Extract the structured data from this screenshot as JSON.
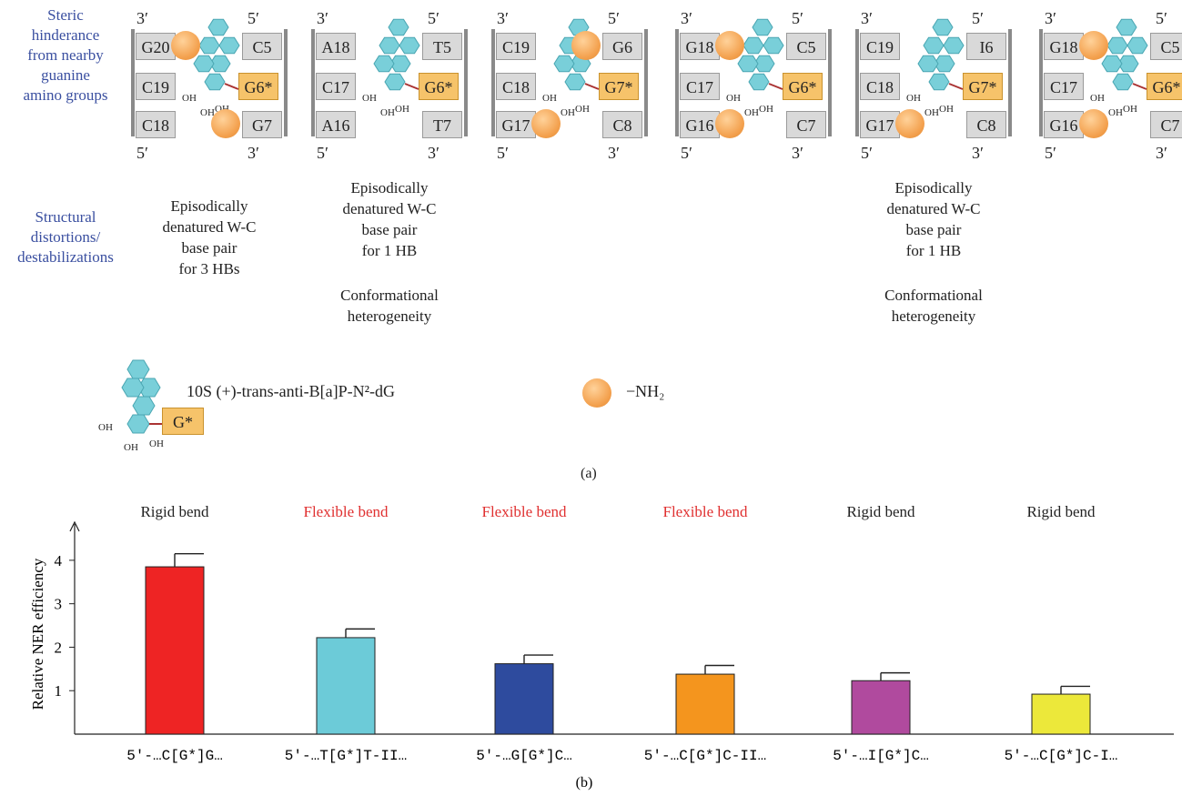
{
  "row_labels": {
    "steric": [
      "Steric",
      "hinderance",
      "from nearby",
      "guanine",
      "amino groups"
    ],
    "structural": [
      "Structural",
      "distortions/",
      "destabilizations"
    ]
  },
  "panels": [
    {
      "top_left": "3′",
      "top_right": "5′",
      "bottom_left": "5′",
      "bottom_right": "3′",
      "left": [
        "G20",
        "C19",
        "C18"
      ],
      "right": [
        "C5",
        "G6*",
        "G7"
      ],
      "notes": [
        "Episodically",
        "denatured W-C",
        "base pair",
        "for 3 HBs"
      ],
      "notes2": []
    },
    {
      "top_left": "3′",
      "top_right": "5′",
      "bottom_left": "5′",
      "bottom_right": "3′",
      "left": [
        "A18",
        "C17",
        "A16"
      ],
      "right": [
        "T5",
        "G6*",
        "T7"
      ],
      "notes": [
        "Episodically",
        "denatured W-C",
        "base pair",
        "for 1 HB"
      ],
      "notes2": [
        "Conformational",
        "heterogeneity"
      ]
    },
    {
      "top_left": "3′",
      "top_right": "5′",
      "bottom_left": "5′",
      "bottom_right": "3′",
      "left": [
        "C19",
        "C18",
        "G17"
      ],
      "right": [
        "G6",
        "G7*",
        "C8"
      ],
      "notes": [],
      "notes2": []
    },
    {
      "top_left": "3′",
      "top_right": "5′",
      "bottom_left": "5′",
      "bottom_right": "3′",
      "left": [
        "G18",
        "C17",
        "G16"
      ],
      "right": [
        "C5",
        "G6*",
        "C7"
      ],
      "notes": [],
      "notes2": []
    },
    {
      "top_left": "3′",
      "top_right": "5′",
      "bottom_left": "5′",
      "bottom_right": "3′",
      "left": [
        "C19",
        "C18",
        "G17"
      ],
      "right": [
        "I6",
        "G7*",
        "C8"
      ],
      "notes": [
        "Episodically",
        "denatured W-C",
        "base pair",
        "for 1 HB"
      ],
      "notes2": [
        "Conformational",
        "heterogeneity"
      ]
    },
    {
      "top_left": "3′",
      "top_right": "5′",
      "bottom_left": "5′",
      "bottom_right": "3′",
      "left": [
        "G18",
        "C17",
        "G16"
      ],
      "right": [
        "C5",
        "G6*",
        "C7"
      ],
      "notes": [],
      "notes2": []
    }
  ],
  "oh_label": "OH",
  "legend": {
    "adduct_box": "G*",
    "adduct_name": "10S (+)-trans-anti-B[a]P-N²-dG",
    "amino_label": "−NH₂"
  },
  "caption_a": "(a)",
  "caption_b": "(b)",
  "chart_data": {
    "type": "bar",
    "categories": [
      "5′-…C[G*]G…",
      "5′-…T[G*]T-II…",
      "5′-…G[G*]C…",
      "5′-…C[G*]C-II…",
      "5′-…I[G*]C…",
      "5′-…C[G*]C-I…"
    ],
    "values": [
      3.85,
      2.22,
      1.62,
      1.38,
      1.23,
      0.92
    ],
    "errors": [
      0.3,
      0.2,
      0.2,
      0.2,
      0.18,
      0.18
    ],
    "bend_labels": [
      "Rigid bend",
      "Flexible bend",
      "Flexible bend",
      "Flexible bend",
      "Rigid bend",
      "Rigid bend"
    ],
    "bend_colors": [
      "#222222",
      "#e03030",
      "#e03030",
      "#e03030",
      "#222222",
      "#222222"
    ],
    "bar_colors": [
      "#ee2424",
      "#6ccbd8",
      "#2e4b9e",
      "#f4951e",
      "#b04a9e",
      "#ece83a"
    ],
    "ylabel": "Relative NER efficiency",
    "yticks": [
      1,
      2,
      3,
      4
    ],
    "ylim": [
      0,
      4.5
    ]
  }
}
